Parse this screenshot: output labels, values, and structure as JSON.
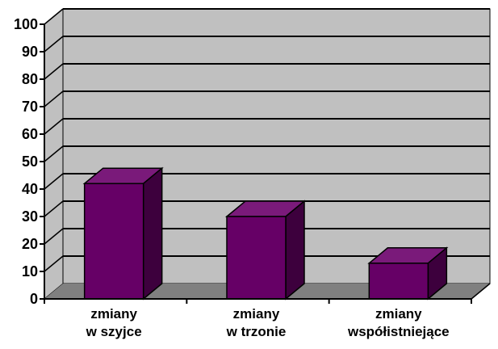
{
  "chart_data": {
    "type": "bar",
    "title": "",
    "xlabel": "",
    "ylabel": "",
    "ylim": [
      0,
      100
    ],
    "y_ticks": [
      "0",
      "10",
      "20",
      "30",
      "40",
      "50",
      "60",
      "70",
      "80",
      "90",
      "100"
    ],
    "grid": true,
    "legend": "none",
    "three_d": true,
    "categories": [
      [
        "zmiany",
        "w szyjce"
      ],
      [
        "zmiany",
        "w trzonie"
      ],
      [
        "zmiany",
        "współistniejące"
      ]
    ],
    "values": [
      42,
      30,
      13
    ],
    "colors": {
      "bar_front": "#660066",
      "bar_top": "#7a1a7a",
      "bar_side": "#3d003d",
      "wall": "#c0c0c0",
      "floor": "#808080",
      "grid": "#000000"
    }
  }
}
